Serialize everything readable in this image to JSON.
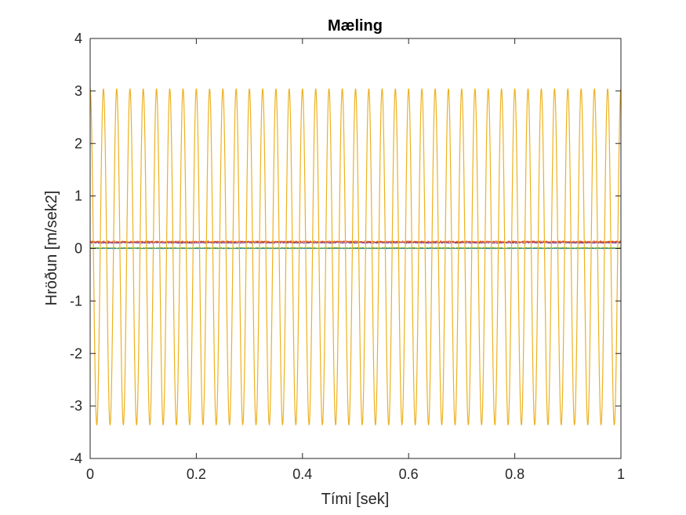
{
  "chart_data": {
    "type": "line",
    "title": "Mæling",
    "xlabel": "Tími [sek]",
    "ylabel": "Hröðun [m/sek2]",
    "xlim": [
      0,
      1
    ],
    "ylim": [
      -4,
      4
    ],
    "x_ticks": [
      "0",
      "0.2",
      "0.4",
      "0.6",
      "0.8",
      "1"
    ],
    "y_ticks": [
      "-4",
      "-3",
      "-2",
      "-1",
      "0",
      "1",
      "2",
      "3",
      "4"
    ],
    "grid": false,
    "legend": "none",
    "series": [
      {
        "color": "#EDB120",
        "shape": "sine",
        "offset": -0.16,
        "amplitude": 3.2,
        "frequency_hz": 40,
        "phase_deg": 90
      },
      {
        "color": "#D95319",
        "shape": "noise",
        "level": 0.13,
        "noise": 0.015
      },
      {
        "color": "#7E2F8E",
        "shape": "noise",
        "level": 0.11,
        "noise": 0.012
      },
      {
        "color": "#77AC30",
        "shape": "noise",
        "level": 0.01,
        "noise": 0.01
      },
      {
        "color": "#0072BD",
        "shape": "noise",
        "level": 0.0,
        "noise": 0.004
      }
    ]
  }
}
